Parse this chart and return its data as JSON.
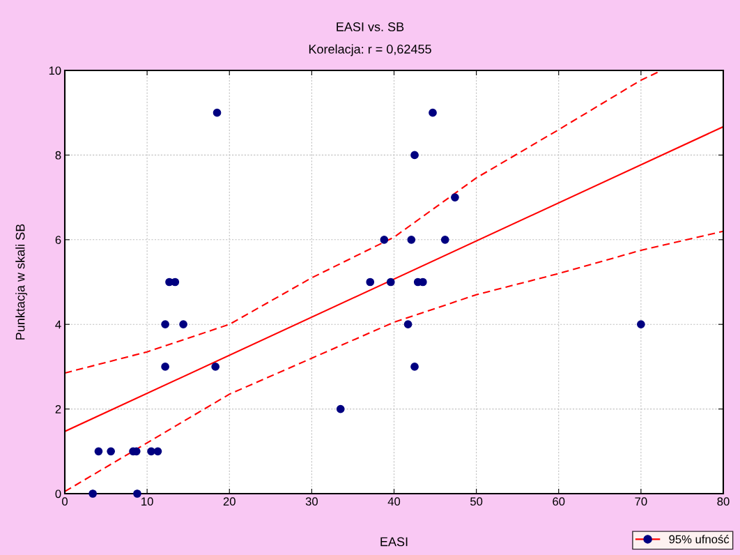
{
  "chart_data": {
    "type": "scatter",
    "title": "EASI vs. SB",
    "subtitle": "Korelacja: r = 0,62455",
    "xlabel": "EASI",
    "ylabel": "Punktacja w skali SB",
    "xlim": [
      0,
      80
    ],
    "ylim": [
      0,
      10
    ],
    "xticks": [
      0,
      10,
      20,
      30,
      40,
      50,
      60,
      70,
      80
    ],
    "yticks": [
      0,
      2,
      4,
      6,
      8,
      10
    ],
    "grid": true,
    "legend": "bottom right",
    "series": [
      {
        "name": "95% ufność",
        "marker": "circle",
        "color": "#000080",
        "x": [
          3.4,
          4.1,
          5.6,
          8.3,
          8.7,
          8.8,
          10.5,
          11.3,
          12.2,
          12.2,
          12.7,
          13.4,
          14.4,
          18.3,
          18.5,
          33.5,
          37.1,
          38.8,
          39.6,
          41.7,
          42.1,
          42.5,
          42.5,
          42.9,
          43.5,
          44.7,
          46.2,
          47.4,
          70.0
        ],
        "values": [
          0,
          1,
          1,
          1,
          1,
          0,
          1,
          1,
          3,
          4,
          5,
          5,
          4,
          3,
          9,
          2,
          5,
          6,
          5,
          4,
          6,
          8,
          3,
          5,
          5,
          9,
          6,
          7,
          4
        ]
      },
      {
        "type": "line",
        "color": "#ff0000",
        "line_style": "solid",
        "marker": "none",
        "x": [
          0,
          80
        ],
        "values": [
          1.47,
          8.67
        ]
      },
      {
        "type": "line",
        "color": "#ff0000",
        "line_style": "dashed",
        "marker": "none",
        "x": [
          0,
          10,
          20,
          30,
          40,
          50,
          60,
          70,
          72.5
        ],
        "values": [
          2.85,
          3.35,
          4.0,
          5.1,
          6.06,
          7.46,
          8.6,
          9.77,
          10
        ]
      },
      {
        "type": "line",
        "color": "#ff0000",
        "line_style": "dashed",
        "marker": "none",
        "x": [
          0,
          10,
          20,
          30,
          40,
          50,
          60,
          70,
          80
        ],
        "values": [
          0.05,
          1.2,
          2.35,
          3.2,
          4.05,
          4.7,
          5.2,
          5.75,
          6.2
        ]
      }
    ]
  }
}
